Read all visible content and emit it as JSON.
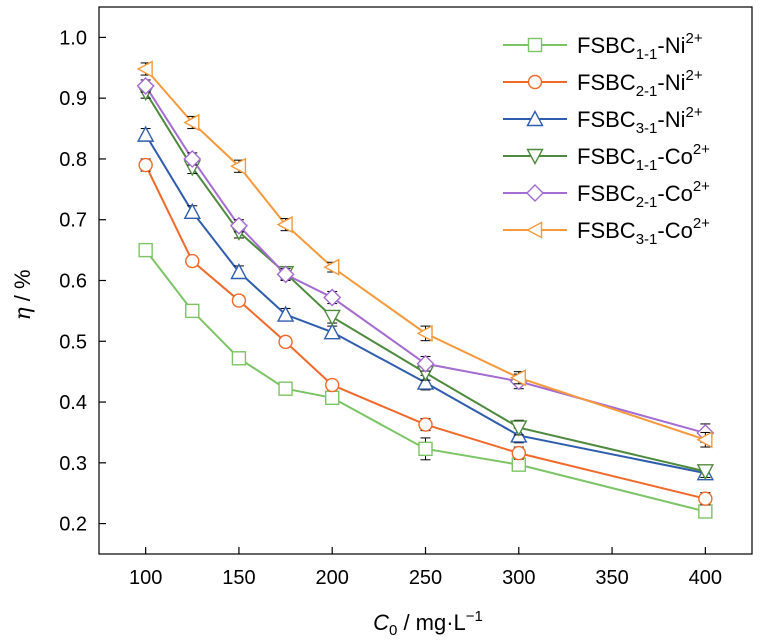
{
  "chart_data": {
    "type": "line",
    "x": [
      100,
      125,
      150,
      175,
      200,
      250,
      300,
      400
    ],
    "xlim": [
      75,
      425
    ],
    "ylim": [
      0.15,
      1.05
    ],
    "xticks": [
      "100",
      "150",
      "200",
      "250",
      "300",
      "350",
      "400"
    ],
    "yticks": [
      "0.2",
      "0.3",
      "0.4",
      "0.5",
      "0.6",
      "0.7",
      "0.8",
      "0.9",
      "1.0"
    ],
    "xticks_values": [
      100,
      150,
      200,
      250,
      300,
      350,
      400
    ],
    "yticks_values": [
      0.2,
      0.3,
      0.4,
      0.5,
      0.6,
      0.7,
      0.8,
      0.9,
      1.0
    ],
    "xlabel": {
      "italic": "C",
      "sub": "0",
      "rest": " / mg·L",
      "sup": "−1"
    },
    "ylabel": {
      "italic": "η",
      "rest": " / %"
    },
    "legend_position": "top-right",
    "grid": false,
    "series": [
      {
        "name": "FSBC",
        "sub": "1-1",
        "ion": "-Ni",
        "sup": "2+",
        "color": "#7CC466",
        "marker": "square",
        "values": [
          0.65,
          0.55,
          0.472,
          0.422,
          0.407,
          0.323,
          0.297,
          0.22
        ],
        "errors": [
          0.01,
          0.008,
          0.008,
          0.008,
          0.01,
          0.018,
          0.01,
          0.01
        ]
      },
      {
        "name": "FSBC",
        "sub": "2-1",
        "ion": "-Ni",
        "sup": "2+",
        "color": "#F0692A",
        "marker": "circle",
        "values": [
          0.79,
          0.632,
          0.567,
          0.499,
          0.428,
          0.363,
          0.316,
          0.241
        ],
        "errors": [
          0.01,
          0.008,
          0.008,
          0.008,
          0.008,
          0.01,
          0.01,
          0.01
        ]
      },
      {
        "name": "FSBC",
        "sub": "3-1",
        "ion": "-Ni",
        "sup": "2+",
        "color": "#2F5DAD",
        "marker": "triangle-up",
        "values": [
          0.84,
          0.713,
          0.614,
          0.544,
          0.515,
          0.432,
          0.345,
          0.283
        ],
        "errors": [
          0.01,
          0.01,
          0.01,
          0.01,
          0.01,
          0.012,
          0.012,
          0.01
        ]
      },
      {
        "name": "FSBC",
        "sub": "1-1",
        "ion": "-Co",
        "sup": "2+",
        "color": "#4E8A3E",
        "marker": "triangle-down",
        "values": [
          0.91,
          0.786,
          0.68,
          0.612,
          0.54,
          0.448,
          0.358,
          0.286
        ],
        "errors": [
          0.01,
          0.01,
          0.01,
          0.01,
          0.01,
          0.012,
          0.012,
          0.01
        ]
      },
      {
        "name": "FSBC",
        "sub": "2-1",
        "ion": "-Co",
        "sup": "2+",
        "color": "#A46BD1",
        "marker": "diamond",
        "values": [
          0.92,
          0.8,
          0.69,
          0.61,
          0.572,
          0.463,
          0.434,
          0.349
        ],
        "errors": [
          0.01,
          0.01,
          0.01,
          0.01,
          0.01,
          0.012,
          0.012,
          0.015
        ]
      },
      {
        "name": "FSBC",
        "sub": "3-1",
        "ion": "-Co",
        "sup": "2+",
        "color": "#F7993B",
        "marker": "triangle-left",
        "values": [
          0.948,
          0.86,
          0.788,
          0.692,
          0.622,
          0.513,
          0.44,
          0.338
        ],
        "errors": [
          0.01,
          0.01,
          0.01,
          0.01,
          0.008,
          0.012,
          0.01,
          0.012
        ]
      }
    ]
  }
}
